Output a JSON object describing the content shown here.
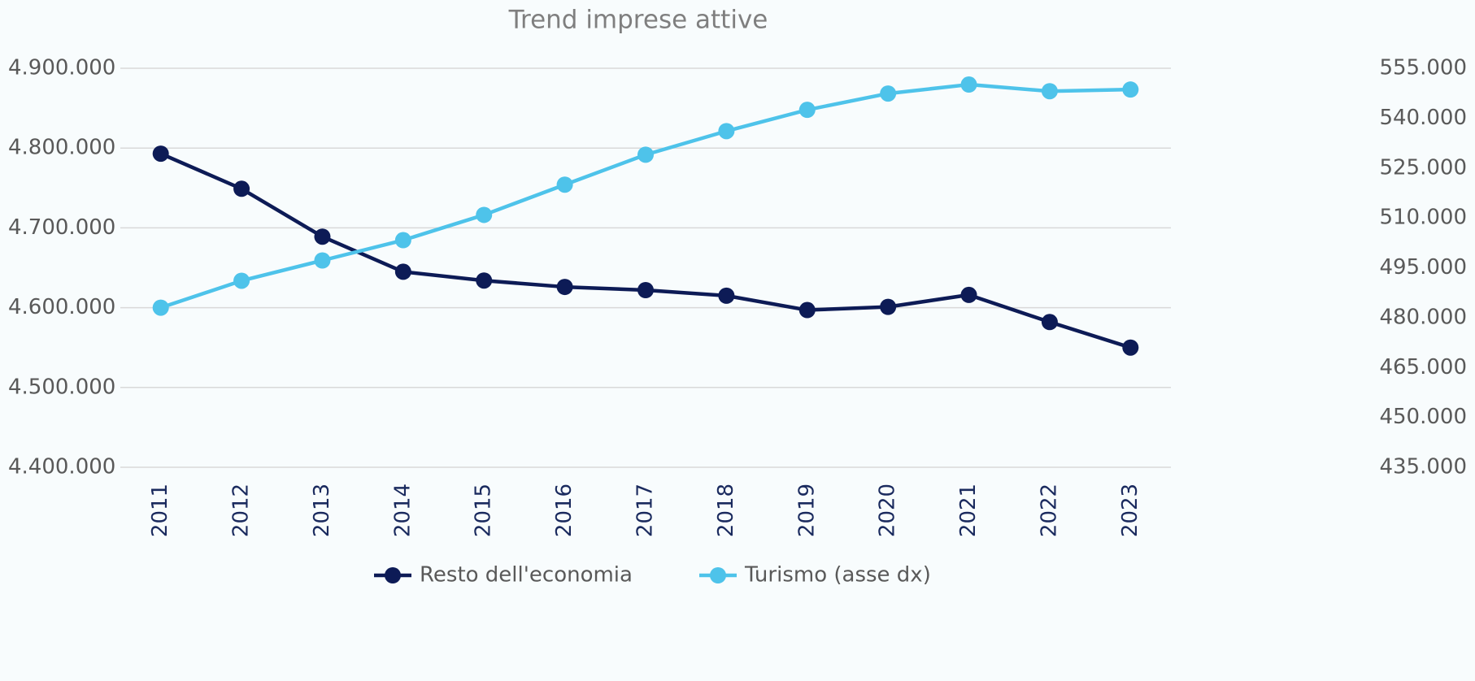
{
  "chart_data": {
    "type": "line",
    "title": "Trend imprese attive",
    "categories": [
      "2011",
      "2012",
      "2013",
      "2014",
      "2015",
      "2016",
      "2017",
      "2018",
      "2019",
      "2020",
      "2021",
      "2022",
      "2023"
    ],
    "series": [
      {
        "name": "Resto dell'economia",
        "color": "#0d1b56",
        "values": [
          4793000,
          4749000,
          4689000,
          4645000,
          4634000,
          4626000,
          4622000,
          4615000,
          4597000,
          4601000,
          4616000,
          4582000,
          4550000
        ]
      },
      {
        "name": "Turismo (asse dx)",
        "color": "#4ec3ea",
        "axis": "y2",
        "values": [
          483000,
          491100,
          497200,
          503300,
          510900,
          520000,
          529000,
          536100,
          542500,
          547400,
          550100,
          548100,
          548600
        ]
      }
    ],
    "ylim": [
      4400000,
      4900000
    ],
    "yticks": [
      {
        "value": 4400000,
        "label": "4.400.000"
      },
      {
        "value": 4500000,
        "label": "4.500.000"
      },
      {
        "value": 4600000,
        "label": "4.600.000"
      },
      {
        "value": 4700000,
        "label": "4.700.000"
      },
      {
        "value": 4800000,
        "label": "4.800.000"
      },
      {
        "value": 4900000,
        "label": "4.900.000"
      }
    ],
    "y2lim": [
      435000,
      555000
    ],
    "y2ticks": [
      {
        "value": 435000,
        "label": "435.000"
      },
      {
        "value": 450000,
        "label": "450.000"
      },
      {
        "value": 465000,
        "label": "465.000"
      },
      {
        "value": 480000,
        "label": "480.000"
      },
      {
        "value": 495000,
        "label": "495.000"
      },
      {
        "value": 510000,
        "label": "510.000"
      },
      {
        "value": 525000,
        "label": "525.000"
      },
      {
        "value": 540000,
        "label": "540.000"
      },
      {
        "value": 555000,
        "label": "555.000"
      }
    ],
    "grid": true,
    "legend": "bottom"
  }
}
